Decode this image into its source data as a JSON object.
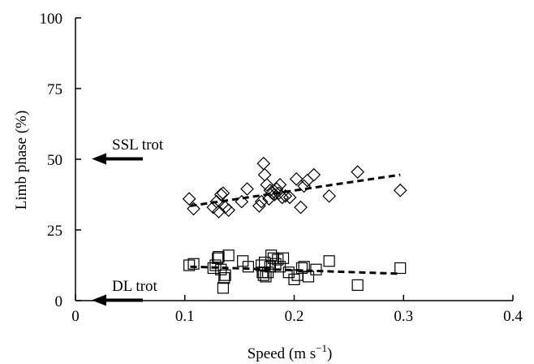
{
  "chart_data": {
    "type": "scatter",
    "xlabel": "Speed (m s",
    "xlabel_sup": "−1",
    "xlabel_tail": ")",
    "ylabel": "Limb phase (%)",
    "xlim": [
      0,
      0.4
    ],
    "ylim": [
      0,
      100
    ],
    "x_ticks": [
      "0",
      "0.1",
      "0.2",
      "0.3",
      "0.4"
    ],
    "x_tick_values": [
      0,
      0.1,
      0.2,
      0.3,
      0.4
    ],
    "y_ticks": [
      "0",
      "25",
      "50",
      "75",
      "100"
    ],
    "y_tick_values": [
      0,
      25,
      50,
      75,
      100
    ],
    "grid": false,
    "annotations": [
      {
        "text": "SSL trot",
        "y": 50
      },
      {
        "text": "DL trot",
        "y": 0
      }
    ],
    "series": [
      {
        "marker": "diamond",
        "points": [
          [
            0.104,
            36
          ],
          [
            0.108,
            32.5
          ],
          [
            0.126,
            33
          ],
          [
            0.129,
            35
          ],
          [
            0.131,
            31.5
          ],
          [
            0.133,
            37.5
          ],
          [
            0.135,
            38
          ],
          [
            0.137,
            33
          ],
          [
            0.14,
            32
          ],
          [
            0.152,
            35
          ],
          [
            0.157,
            39.5
          ],
          [
            0.168,
            33.5
          ],
          [
            0.17,
            35
          ],
          [
            0.172,
            48.5
          ],
          [
            0.173,
            44.5
          ],
          [
            0.175,
            41
          ],
          [
            0.177,
            36
          ],
          [
            0.178,
            39
          ],
          [
            0.18,
            38
          ],
          [
            0.182,
            37.5
          ],
          [
            0.184,
            39.5
          ],
          [
            0.186,
            38
          ],
          [
            0.187,
            41
          ],
          [
            0.189,
            36.5
          ],
          [
            0.192,
            37
          ],
          [
            0.196,
            36.5
          ],
          [
            0.202,
            43
          ],
          [
            0.206,
            33
          ],
          [
            0.209,
            40.5
          ],
          [
            0.212,
            42.5
          ],
          [
            0.218,
            44.5
          ],
          [
            0.232,
            37
          ],
          [
            0.258,
            45.5
          ],
          [
            0.297,
            39
          ]
        ],
        "trend": [
          [
            0.105,
            33.5
          ],
          [
            0.297,
            44.5
          ]
        ]
      },
      {
        "marker": "square",
        "points": [
          [
            0.104,
            12.5
          ],
          [
            0.108,
            13
          ],
          [
            0.126,
            11.5
          ],
          [
            0.128,
            12.5
          ],
          [
            0.13,
            15
          ],
          [
            0.131,
            15.5
          ],
          [
            0.133,
            11
          ],
          [
            0.135,
            4.5
          ],
          [
            0.136,
            8
          ],
          [
            0.137,
            9
          ],
          [
            0.14,
            16
          ],
          [
            0.153,
            14
          ],
          [
            0.158,
            12
          ],
          [
            0.17,
            12.5
          ],
          [
            0.171,
            10
          ],
          [
            0.172,
            9
          ],
          [
            0.173,
            13.5
          ],
          [
            0.174,
            8.5
          ],
          [
            0.176,
            10
          ],
          [
            0.178,
            12
          ],
          [
            0.179,
            16
          ],
          [
            0.181,
            15
          ],
          [
            0.183,
            13
          ],
          [
            0.185,
            14.5
          ],
          [
            0.187,
            12
          ],
          [
            0.19,
            15
          ],
          [
            0.195,
            10
          ],
          [
            0.2,
            7.5
          ],
          [
            0.203,
            9
          ],
          [
            0.207,
            11.5
          ],
          [
            0.209,
            12
          ],
          [
            0.213,
            8.5
          ],
          [
            0.22,
            11
          ],
          [
            0.232,
            14
          ],
          [
            0.258,
            5.5
          ],
          [
            0.297,
            11.5
          ]
        ],
        "trend": [
          [
            0.105,
            12
          ],
          [
            0.297,
            9.5
          ]
        ]
      }
    ]
  }
}
